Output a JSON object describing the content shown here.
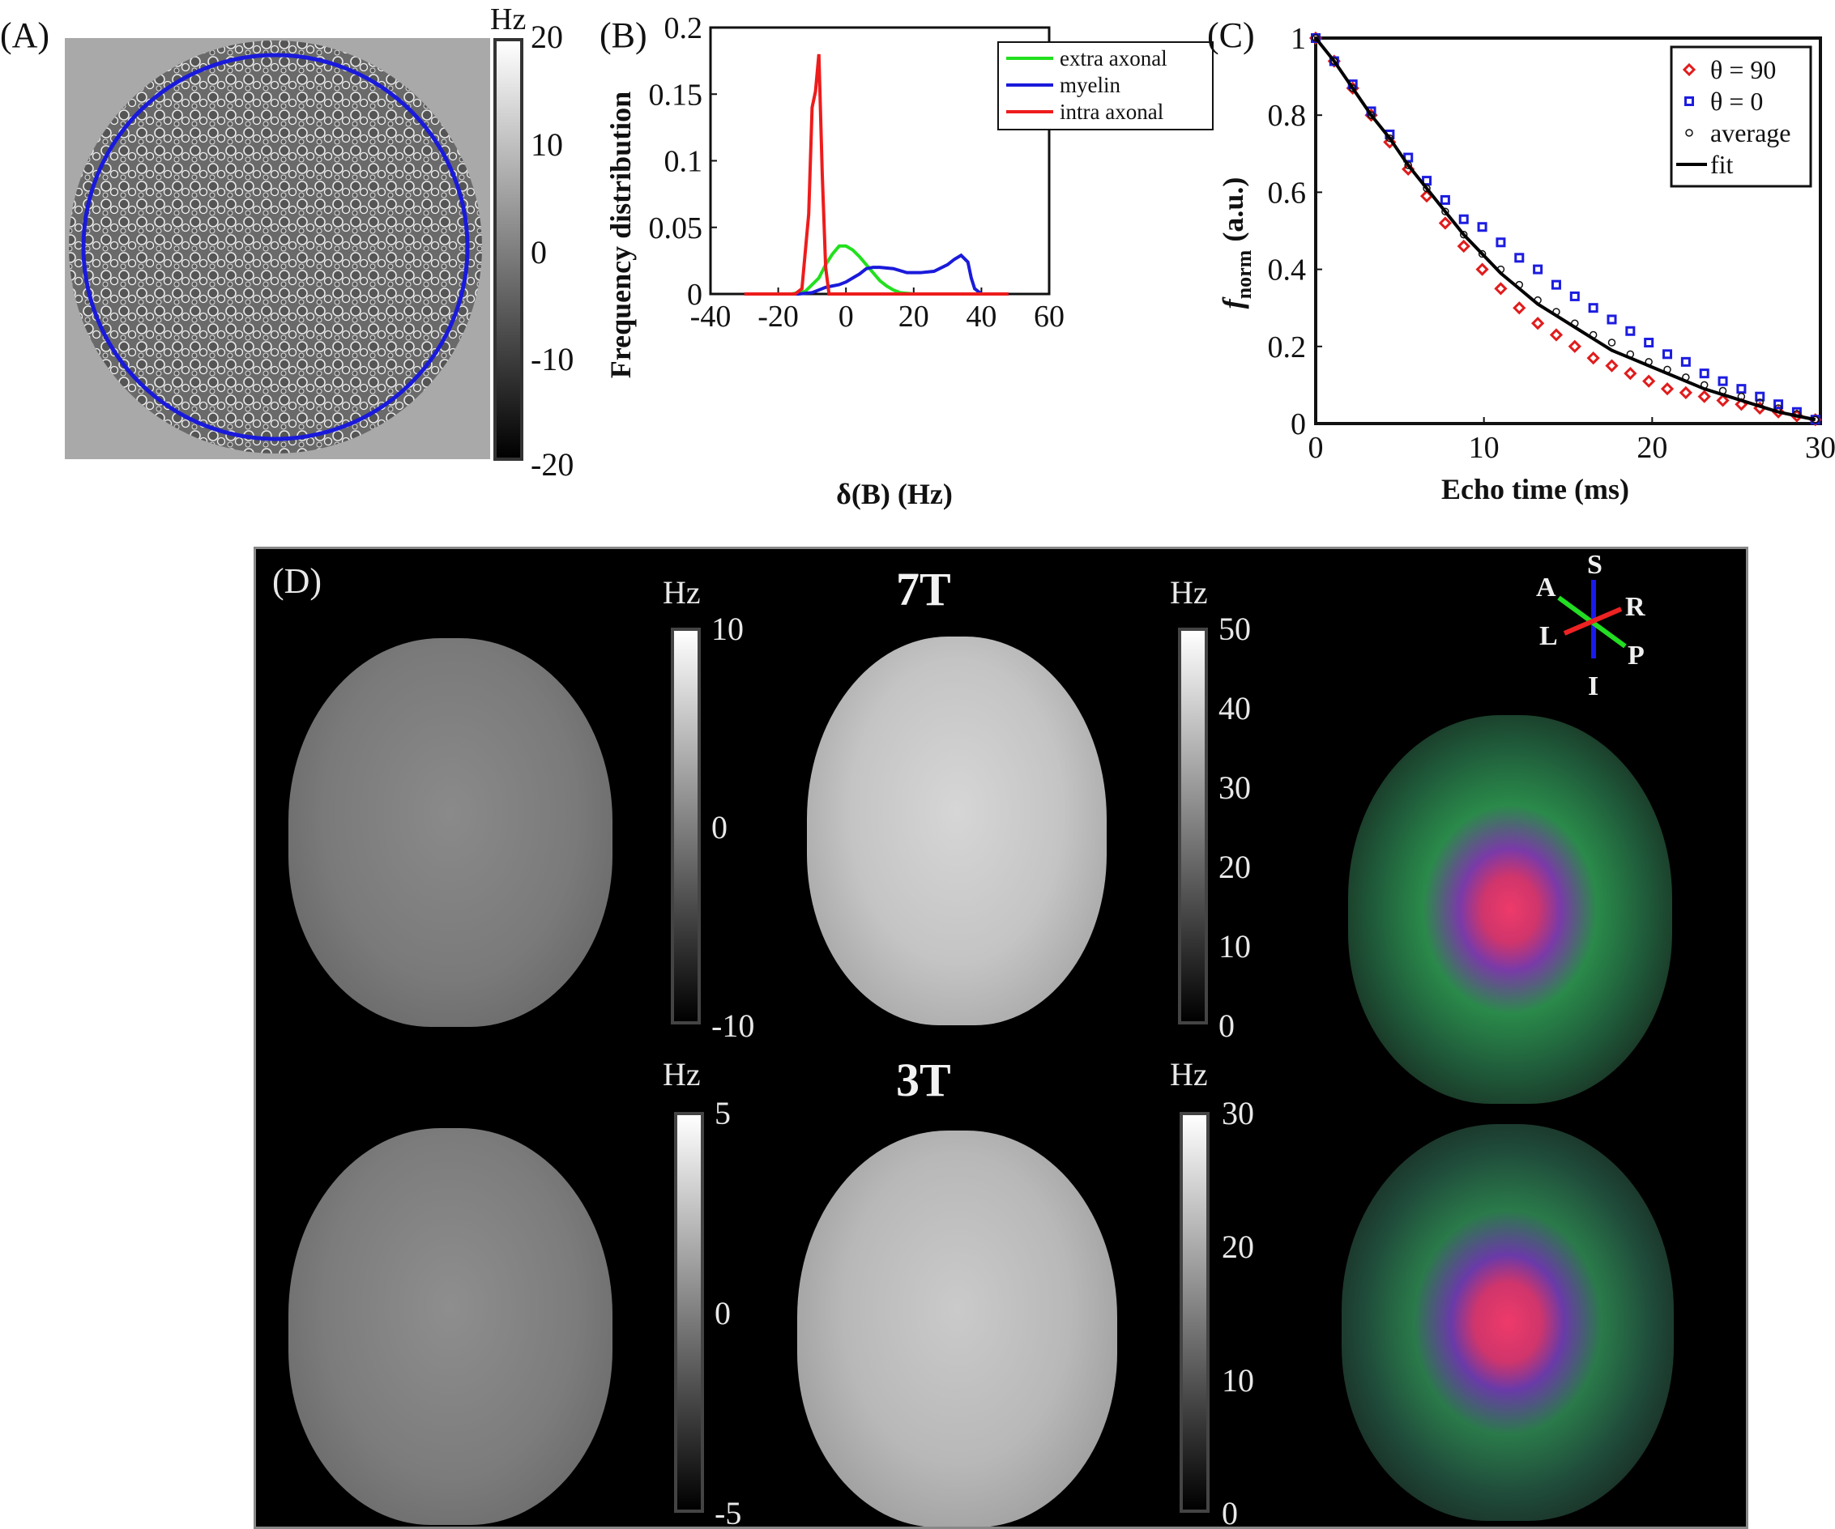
{
  "panels": {
    "a": "(A)",
    "b": "(B)",
    "c": "(C)",
    "d": "(D)"
  },
  "panel_a": {
    "unit": "Hz",
    "ticks": [
      "20",
      "10",
      "0",
      "-10",
      "-20"
    ],
    "ring_color": "#1a1adb"
  },
  "panel_d": {
    "field_7t": "7T",
    "field_3t": "3T",
    "unit": "Hz",
    "cbar_7t_left": [
      "10",
      "0",
      "-10"
    ],
    "cbar_7t_right": [
      "50",
      "40",
      "30",
      "20",
      "10",
      "0"
    ],
    "cbar_3t_left": [
      "5",
      "0",
      "-5"
    ],
    "cbar_3t_right": [
      "30",
      "20",
      "10",
      "0"
    ],
    "orientation": {
      "S": "S",
      "I": "I",
      "A": "A",
      "P": "P",
      "L": "L",
      "R": "R"
    }
  },
  "chart_data": [
    {
      "id": "B",
      "type": "line",
      "xlabel": "δ(B) (Hz)",
      "ylabel": "Frequency distribution",
      "xlim": [
        -40,
        60
      ],
      "ylim": [
        0,
        0.2
      ],
      "xticks": [
        -40,
        -20,
        0,
        20,
        40,
        60
      ],
      "yticks": [
        0,
        0.05,
        0.1,
        0.15,
        0.2
      ],
      "ytick_labels": [
        "0",
        "0.05",
        "0.1",
        "0.15",
        "0.2"
      ],
      "legend_position": "top-right",
      "series": [
        {
          "name": "extra axonal",
          "color": "#22e01e",
          "x": [
            -30,
            -16,
            -12,
            -8,
            -6,
            -4,
            -2,
            0,
            2,
            4,
            6,
            8,
            10,
            12,
            14,
            16,
            20,
            30,
            40
          ],
          "y": [
            0,
            0,
            0.002,
            0.012,
            0.022,
            0.03,
            0.036,
            0.036,
            0.033,
            0.028,
            0.022,
            0.016,
            0.01,
            0.006,
            0.003,
            0.001,
            0,
            0,
            0
          ]
        },
        {
          "name": "myelin",
          "color": "#1a1adb",
          "x": [
            -30,
            -14,
            -10,
            -8,
            -6,
            -4,
            -2,
            0,
            2,
            4,
            6,
            8,
            10,
            14,
            18,
            22,
            26,
            30,
            32,
            34,
            36,
            37,
            38,
            40,
            48
          ],
          "y": [
            0,
            0,
            0.001,
            0.003,
            0.005,
            0.006,
            0.007,
            0.009,
            0.012,
            0.015,
            0.019,
            0.02,
            0.02,
            0.019,
            0.016,
            0.016,
            0.017,
            0.022,
            0.026,
            0.029,
            0.024,
            0.012,
            0.004,
            0,
            0
          ]
        },
        {
          "name": "intra axonal",
          "color": "#ee1c1c",
          "x": [
            -30,
            -15,
            -13,
            -11,
            -10,
            -9,
            -8,
            -7,
            -6,
            -5,
            0,
            48
          ],
          "y": [
            0,
            0,
            0.004,
            0.06,
            0.14,
            0.152,
            0.18,
            0.09,
            0.02,
            0,
            0,
            0
          ]
        }
      ]
    },
    {
      "id": "C",
      "type": "scatter",
      "xlabel": "Echo time (ms)",
      "ylabel": "f_norm (a.u.)",
      "ylabel_main": "f",
      "ylabel_sub": "norm",
      "ylabel_unit": "(a.u.)",
      "xlim": [
        0,
        30
      ],
      "ylim": [
        0,
        1
      ],
      "xticks": [
        0,
        10,
        20,
        30
      ],
      "yticks": [
        0,
        0.2,
        0.4,
        0.6,
        0.8,
        1
      ],
      "ytick_labels": [
        "0",
        "0.2",
        "0.4",
        "0.6",
        "0.8",
        "1"
      ],
      "legend_position": "top-right",
      "x": [
        0,
        1.1,
        2.2,
        3.3,
        4.4,
        5.5,
        6.6,
        7.7,
        8.8,
        9.9,
        11,
        12.1,
        13.2,
        14.3,
        15.4,
        16.5,
        17.6,
        18.7,
        19.8,
        20.9,
        22,
        23.1,
        24.2,
        25.3,
        26.4,
        27.5,
        28.6,
        29.7
      ],
      "series": [
        {
          "name": "θ = 90",
          "marker": "diamond",
          "color": "#e01c1c",
          "y": [
            1.0,
            0.94,
            0.87,
            0.8,
            0.73,
            0.66,
            0.59,
            0.52,
            0.46,
            0.4,
            0.35,
            0.3,
            0.26,
            0.23,
            0.2,
            0.17,
            0.15,
            0.13,
            0.11,
            0.09,
            0.08,
            0.07,
            0.06,
            0.05,
            0.04,
            0.03,
            0.02,
            0.01
          ]
        },
        {
          "name": "θ = 0",
          "marker": "square",
          "color": "#1c1ce0",
          "y": [
            1.0,
            0.94,
            0.88,
            0.81,
            0.75,
            0.69,
            0.63,
            0.58,
            0.53,
            0.51,
            0.47,
            0.43,
            0.4,
            0.36,
            0.33,
            0.3,
            0.27,
            0.24,
            0.21,
            0.18,
            0.16,
            0.13,
            0.11,
            0.09,
            0.07,
            0.05,
            0.03,
            0.01
          ]
        },
        {
          "name": "average",
          "marker": "circle",
          "color": "#111111",
          "y": [
            1.0,
            0.94,
            0.87,
            0.8,
            0.74,
            0.67,
            0.61,
            0.55,
            0.49,
            0.44,
            0.4,
            0.36,
            0.32,
            0.29,
            0.26,
            0.23,
            0.21,
            0.18,
            0.16,
            0.14,
            0.12,
            0.1,
            0.085,
            0.07,
            0.055,
            0.04,
            0.025,
            0.01
          ]
        },
        {
          "name": "fit",
          "marker": "line",
          "color": "#000000",
          "y": [
            1.0,
            0.94,
            0.87,
            0.8,
            0.74,
            0.67,
            0.61,
            0.55,
            0.49,
            0.44,
            0.39,
            0.35,
            0.31,
            0.28,
            0.25,
            0.22,
            0.19,
            0.17,
            0.15,
            0.13,
            0.11,
            0.09,
            0.075,
            0.06,
            0.045,
            0.03,
            0.02,
            0.01
          ]
        }
      ]
    }
  ]
}
